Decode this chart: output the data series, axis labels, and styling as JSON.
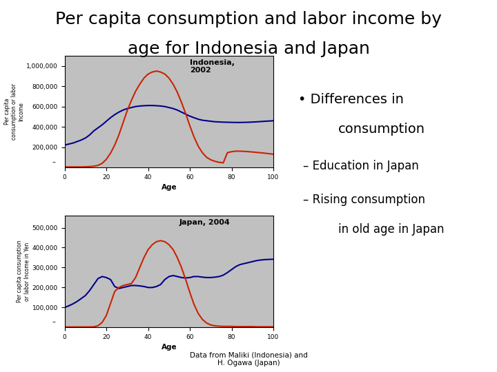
{
  "title_line1": "Per capita consumption and labor income by",
  "title_line2": "age for Indonesia and Japan",
  "title_fontsize": 18,
  "background_color": "#ffffff",
  "plot_bg_color": "#c0c0c0",
  "bullet_header": "Differences in\nconsumption",
  "bullet_items": [
    "Education in Japan",
    "Rising consumption\nin old age in Japan"
  ],
  "footnote": "Data from Maliki (Indonesia) and\nH. Ogawa (Japan)",
  "indonesia_label": "Indonesia,\n2002",
  "japan_label": "Japan, 2004",
  "ylabel_indonesia": "Per capita\nconsumption or labor\nIncome",
  "ylabel_japan": "Per capita consumption\nor labor Income in Yen",
  "xlabel": "Age",
  "indonesia_consumption_x": [
    0,
    2,
    4,
    6,
    8,
    10,
    12,
    14,
    16,
    18,
    20,
    22,
    24,
    26,
    28,
    30,
    32,
    34,
    36,
    38,
    40,
    42,
    44,
    46,
    48,
    50,
    52,
    54,
    56,
    58,
    60,
    62,
    64,
    66,
    68,
    70,
    72,
    74,
    76,
    78,
    80,
    82,
    84,
    86,
    88,
    90,
    92,
    94,
    96,
    98,
    100
  ],
  "indonesia_consumption_y": [
    220000,
    230000,
    240000,
    255000,
    270000,
    290000,
    320000,
    360000,
    390000,
    420000,
    455000,
    490000,
    520000,
    545000,
    565000,
    580000,
    590000,
    600000,
    605000,
    608000,
    610000,
    610000,
    608000,
    605000,
    600000,
    590000,
    580000,
    565000,
    545000,
    525000,
    505000,
    490000,
    475000,
    465000,
    460000,
    455000,
    450000,
    448000,
    446000,
    445000,
    444000,
    443000,
    443000,
    444000,
    445000,
    447000,
    449000,
    452000,
    455000,
    457000,
    460000
  ],
  "indonesia_labor_x": [
    0,
    2,
    4,
    6,
    8,
    10,
    12,
    14,
    16,
    18,
    20,
    22,
    24,
    26,
    28,
    30,
    32,
    34,
    36,
    38,
    40,
    42,
    44,
    46,
    48,
    50,
    52,
    54,
    56,
    58,
    60,
    62,
    64,
    66,
    68,
    70,
    72,
    74,
    76,
    78,
    80,
    82,
    84,
    86,
    88,
    90,
    92,
    94,
    96,
    98,
    100
  ],
  "indonesia_labor_y": [
    5000,
    5000,
    5000,
    5000,
    5000,
    6000,
    8000,
    12000,
    20000,
    40000,
    80000,
    140000,
    220000,
    320000,
    440000,
    560000,
    660000,
    750000,
    820000,
    880000,
    920000,
    940000,
    950000,
    940000,
    920000,
    880000,
    820000,
    740000,
    640000,
    530000,
    410000,
    300000,
    210000,
    145000,
    100000,
    75000,
    60000,
    50000,
    45000,
    145000,
    155000,
    160000,
    160000,
    158000,
    155000,
    152000,
    148000,
    144000,
    140000,
    135000,
    130000
  ],
  "indonesia_ylim": [
    0,
    1100000
  ],
  "indonesia_yticks": [
    200000,
    400000,
    600000,
    800000,
    1000000
  ],
  "indonesia_xticks": [
    0,
    20,
    40,
    60,
    80
  ],
  "japan_consumption_x": [
    0,
    2,
    4,
    6,
    8,
    10,
    12,
    14,
    16,
    18,
    20,
    22,
    24,
    26,
    28,
    30,
    32,
    34,
    36,
    38,
    40,
    42,
    44,
    46,
    48,
    50,
    52,
    54,
    56,
    58,
    60,
    62,
    64,
    66,
    68,
    70,
    72,
    74,
    76,
    78,
    80,
    82,
    84,
    86,
    88,
    90,
    92,
    94,
    96,
    98,
    100
  ],
  "japan_consumption_y": [
    100000,
    108000,
    118000,
    130000,
    145000,
    160000,
    185000,
    215000,
    245000,
    255000,
    250000,
    240000,
    205000,
    195000,
    200000,
    205000,
    210000,
    210000,
    208000,
    205000,
    200000,
    200000,
    205000,
    215000,
    240000,
    255000,
    260000,
    255000,
    250000,
    248000,
    250000,
    255000,
    255000,
    252000,
    250000,
    250000,
    252000,
    255000,
    262000,
    275000,
    290000,
    305000,
    315000,
    320000,
    325000,
    330000,
    335000,
    338000,
    340000,
    341000,
    342000
  ],
  "japan_labor_x": [
    0,
    2,
    4,
    6,
    8,
    10,
    12,
    14,
    16,
    18,
    20,
    22,
    24,
    26,
    28,
    30,
    32,
    34,
    36,
    38,
    40,
    42,
    44,
    46,
    48,
    50,
    52,
    54,
    56,
    58,
    60,
    62,
    64,
    66,
    68,
    70,
    72,
    74,
    76,
    78,
    80,
    82,
    84,
    86,
    88,
    90,
    92,
    94,
    96,
    98,
    100
  ],
  "japan_labor_y": [
    2000,
    2000,
    2000,
    2000,
    2000,
    2000,
    2000,
    3000,
    8000,
    25000,
    60000,
    120000,
    180000,
    200000,
    210000,
    215000,
    220000,
    250000,
    300000,
    350000,
    390000,
    415000,
    430000,
    435000,
    430000,
    415000,
    390000,
    350000,
    300000,
    240000,
    175000,
    115000,
    70000,
    40000,
    22000,
    12000,
    8000,
    6000,
    5000,
    5000,
    5000,
    4000,
    4000,
    4000,
    4000,
    4000,
    3000,
    3000,
    3000,
    3000,
    3000
  ],
  "japan_ylim": [
    0,
    560000
  ],
  "japan_yticks": [
    100000,
    200000,
    300000,
    400000,
    500000
  ],
  "japan_xticks": [
    0,
    20,
    40,
    60,
    80
  ],
  "consumption_color": "#00008b",
  "labor_color": "#cc2200",
  "line_width": 1.5
}
